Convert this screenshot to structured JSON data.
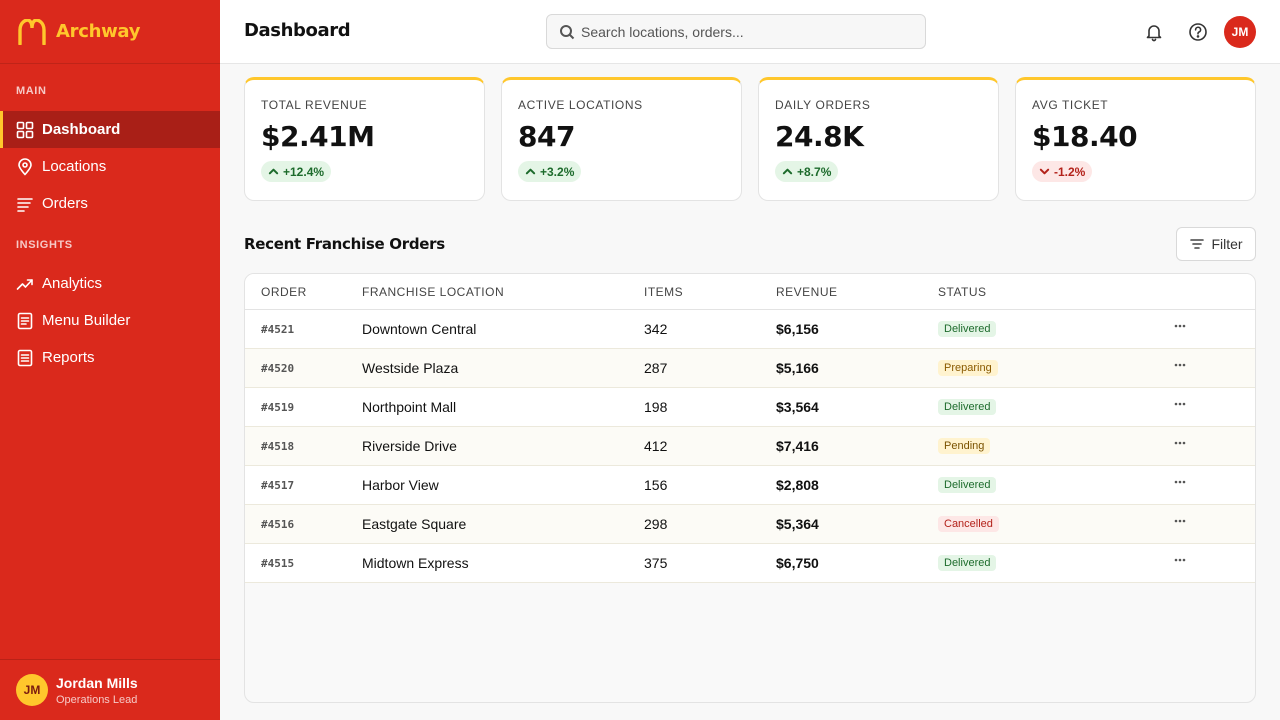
{
  "brand": {
    "name": "Archway",
    "primary_color": "#da291c",
    "accent_color": "#ffc72c",
    "logo_icon": "arches-logo-icon"
  },
  "sidebar": {
    "main_label": "MAIN",
    "insights_label": "INSIGHTS",
    "main_items": [
      {
        "label": "Dashboard",
        "icon": "grid-icon",
        "active": true
      },
      {
        "label": "Locations",
        "icon": "map-pin-icon",
        "active": false
      },
      {
        "label": "Orders",
        "icon": "list-icon",
        "active": false
      }
    ],
    "insights_items": [
      {
        "label": "Analytics",
        "icon": "trend-icon",
        "active": false
      },
      {
        "label": "Menu Builder",
        "icon": "document-icon",
        "active": false
      },
      {
        "label": "Reports",
        "icon": "report-icon",
        "active": false
      }
    ],
    "user": {
      "initials": "JM",
      "name": "Jordan Mills",
      "role": "Operations Lead"
    }
  },
  "header": {
    "title": "Dashboard",
    "search_placeholder": "Search locations, orders...",
    "avatar_initials": "JM",
    "icons": [
      "bell-icon",
      "help-icon"
    ]
  },
  "stats": [
    {
      "label": "TOTAL REVENUE",
      "value": "$2.41M",
      "change": "+12.4%",
      "trend": "up"
    },
    {
      "label": "ACTIVE LOCATIONS",
      "value": "847",
      "change": "+3.2%",
      "trend": "up"
    },
    {
      "label": "DAILY ORDERS",
      "value": "24.8K",
      "change": "+8.7%",
      "trend": "up"
    },
    {
      "label": "AVG TICKET",
      "value": "$18.40",
      "change": "-1.2%",
      "trend": "down"
    }
  ],
  "orders_section": {
    "title": "Recent Franchise Orders",
    "filter_label": "Filter",
    "columns": [
      "ORDER",
      "FRANCHISE LOCATION",
      "ITEMS",
      "REVENUE",
      "STATUS"
    ],
    "rows": [
      {
        "order": "#4521",
        "location": "Downtown Central",
        "items": "342",
        "revenue": "$6,156",
        "status": "Delivered"
      },
      {
        "order": "#4520",
        "location": "Westside Plaza",
        "items": "287",
        "revenue": "$5,166",
        "status": "Preparing"
      },
      {
        "order": "#4519",
        "location": "Northpoint Mall",
        "items": "198",
        "revenue": "$3,564",
        "status": "Delivered"
      },
      {
        "order": "#4518",
        "location": "Riverside Drive",
        "items": "412",
        "revenue": "$7,416",
        "status": "Pending"
      },
      {
        "order": "#4517",
        "location": "Harbor View",
        "items": "156",
        "revenue": "$2,808",
        "status": "Delivered"
      },
      {
        "order": "#4516",
        "location": "Eastgate Square",
        "items": "298",
        "revenue": "$5,364",
        "status": "Cancelled"
      },
      {
        "order": "#4515",
        "location": "Midtown Express",
        "items": "375",
        "revenue": "$6,750",
        "status": "Delivered"
      }
    ]
  }
}
